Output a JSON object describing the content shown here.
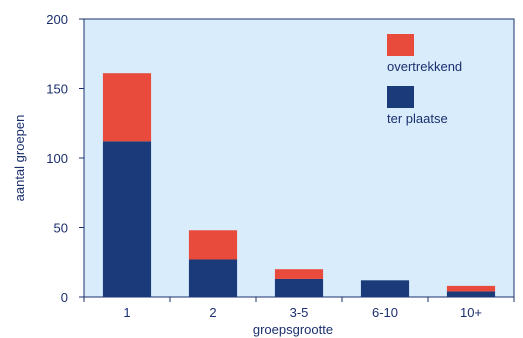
{
  "chart_data": {
    "type": "bar",
    "stacked": true,
    "categories": [
      "1",
      "2",
      "3-5",
      "6-10",
      "10+"
    ],
    "series": [
      {
        "name": "ter plaatse",
        "values": [
          112,
          27,
          13,
          12,
          4
        ],
        "color": "#1b3a7a"
      },
      {
        "name": "overtrekkend",
        "values": [
          49,
          21,
          7,
          0,
          4
        ],
        "color": "#e84a3c"
      }
    ],
    "title": "",
    "xlabel": "groepsgrootte",
    "ylabel": "aantal groepen",
    "ylim": [
      0,
      200
    ],
    "yticks": [
      "0",
      "50",
      "100",
      "150",
      "200"
    ],
    "grid": false,
    "legend_position": "top-right",
    "legend_order": [
      "overtrekkend",
      "ter plaatse"
    ],
    "plot_background": "#d8ecfc",
    "axis_color": "#1b2f6e"
  }
}
